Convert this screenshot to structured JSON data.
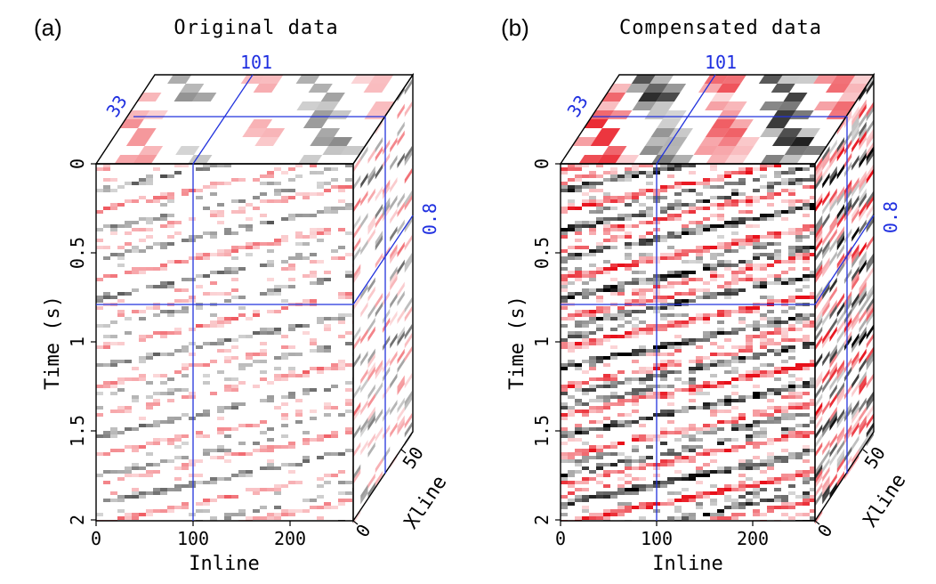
{
  "panels": [
    {
      "letter": "(a)",
      "title": "Original data",
      "cross_inline": "101",
      "cross_xline": "33",
      "cross_time": "0.8",
      "time_ticks": [
        "0",
        "0.5",
        "1",
        "1.5",
        "2"
      ],
      "inline_ticks": [
        "0",
        "100",
        "200"
      ],
      "xline_ticks": [
        "0",
        "50"
      ],
      "time_label": "Time (s)",
      "inline_label": "Inline",
      "xline_label": "Xline",
      "contrast": 0.65
    },
    {
      "letter": "(b)",
      "title": "Compensated data",
      "cross_inline": "101",
      "cross_xline": "33",
      "cross_time": "0.8",
      "time_ticks": [
        "0",
        "0.5",
        "1",
        "1.5",
        "2"
      ],
      "inline_ticks": [
        "0",
        "100",
        "200"
      ],
      "xline_ticks": [
        "0",
        "50"
      ],
      "time_label": "Time (s)",
      "inline_label": "Inline",
      "xline_label": "Xline",
      "contrast": 1.0
    }
  ],
  "colors": {
    "positive": "#e8101a",
    "negative": "#000000",
    "background": "#ffffff",
    "crosshair": "#2233dd"
  }
}
